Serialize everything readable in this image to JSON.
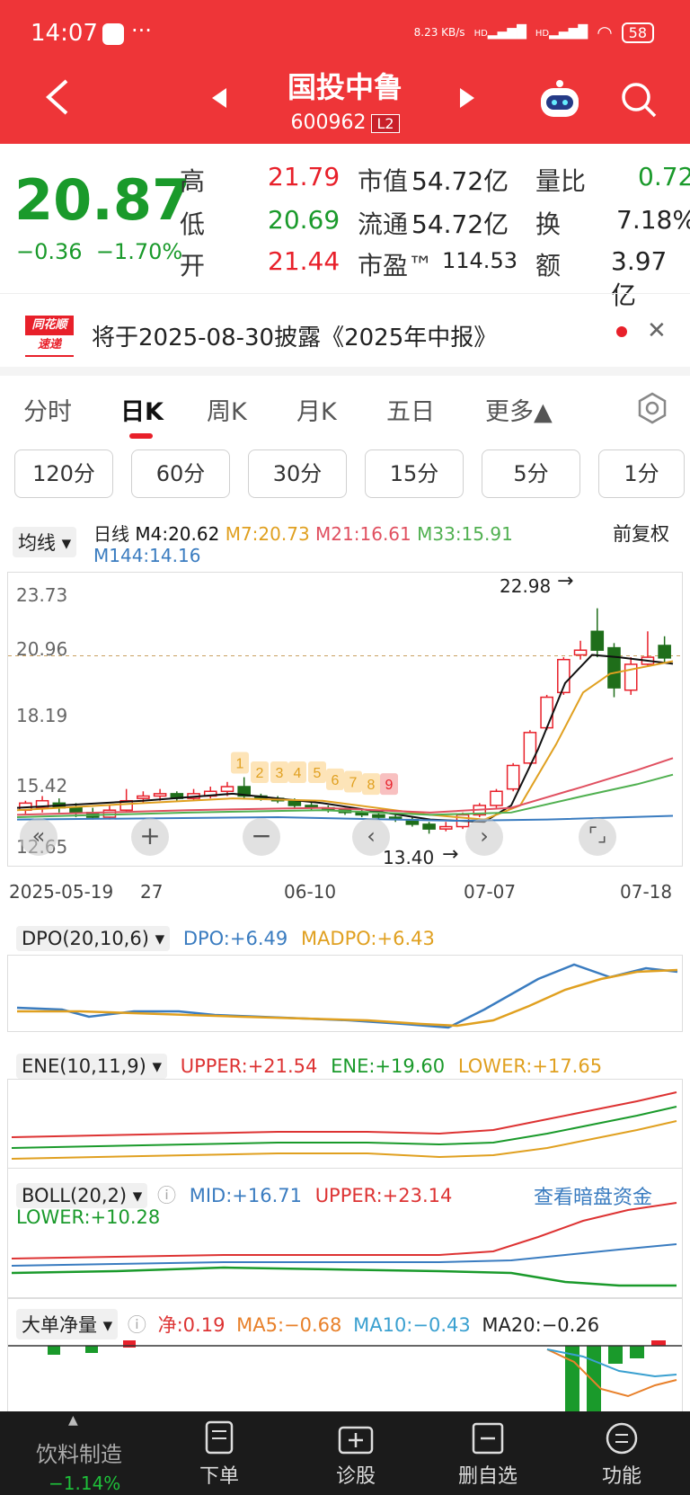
{
  "status_bar": {
    "time": "14:07",
    "more": "···",
    "net_speed": "8.23 KB/s",
    "hd1": "HD",
    "hd2": "HD",
    "battery": "58"
  },
  "header": {
    "title": "国投中鲁",
    "code": "600962",
    "level": "L2"
  },
  "quote": {
    "price": "20.87",
    "change": "−0.36",
    "change_pct": "−1.70%",
    "rows": [
      {
        "l1": "高",
        "v1": "21.79",
        "l2": "市值",
        "v2": "54.72亿",
        "l3": "量比",
        "v3": "0.72"
      },
      {
        "l1": "低",
        "v1": "20.69",
        "l2": "流通",
        "v2": "54.72亿",
        "l3": "换",
        "v3": "7.18%"
      },
      {
        "l1": "开",
        "v1": "21.44",
        "l2": "市盈™",
        "v2": "114.53",
        "l3": "额",
        "v3": "3.97亿"
      }
    ]
  },
  "notice": {
    "logo_top": "同花顺",
    "logo_bottom": "速递",
    "text": "将于2025-08-30披露《2025年中报》"
  },
  "tabs": [
    "分时",
    "日K",
    "周K",
    "月K",
    "五日",
    "更多▲"
  ],
  "periods": [
    "120分",
    "60分",
    "30分",
    "15分",
    "5分",
    "1分"
  ],
  "ma_bar": {
    "selector": "均线",
    "label": "日线",
    "m4": "M4:20.62",
    "m7": "M7:20.73",
    "m21": "M21:16.61",
    "m33": "M33:15.91",
    "m144": "M144:14.16",
    "adjust": "前复权"
  },
  "chart_data": {
    "type": "candlestick",
    "y_ticks": [
      "23.73",
      "20.96",
      "18.19",
      "15.42",
      "12.65"
    ],
    "x_ticks": [
      "2025-05-19",
      "27",
      "06-10",
      "07-07",
      "07-18"
    ],
    "high_marker": "22.98",
    "low_marker": "13.40",
    "counter_labels": [
      "1",
      "2",
      "3",
      "4",
      "5",
      "6",
      "7",
      "8",
      "9"
    ],
    "ylim": [
      12.65,
      23.73
    ],
    "series": [
      {
        "name": "M4",
        "color": "#111111"
      },
      {
        "name": "M7",
        "color": "#e0a020"
      },
      {
        "name": "M21",
        "color": "#e05060"
      },
      {
        "name": "M33",
        "color": "#50b050"
      },
      {
        "name": "M144",
        "color": "#3a7cc0"
      }
    ]
  },
  "dpo": {
    "selector": "DPO(20,10,6)",
    "v1": "DPO:+6.49",
    "v2": "MADPO:+6.43"
  },
  "ene": {
    "selector": "ENE(10,11,9)",
    "v1": "UPPER:+21.54",
    "v2": "ENE:+19.60",
    "v3": "LOWER:+17.65"
  },
  "boll": {
    "selector": "BOLL(20,2)",
    "v1": "MID:+16.71",
    "v2": "UPPER:+23.14",
    "v3": "LOWER:+10.28",
    "link": "查看暗盘资金"
  },
  "flow": {
    "selector": "大单净量",
    "v1": "净:0.19",
    "v2": "MA5:−0.68",
    "v3": "MA10:−0.43",
    "v4": "MA20:−0.26"
  },
  "bottom_nav": {
    "sector": "饮料制造",
    "sector_chg": "−1.14%",
    "b1": "下单",
    "b2": "诊股",
    "b3": "删自选",
    "b4": "功能"
  }
}
